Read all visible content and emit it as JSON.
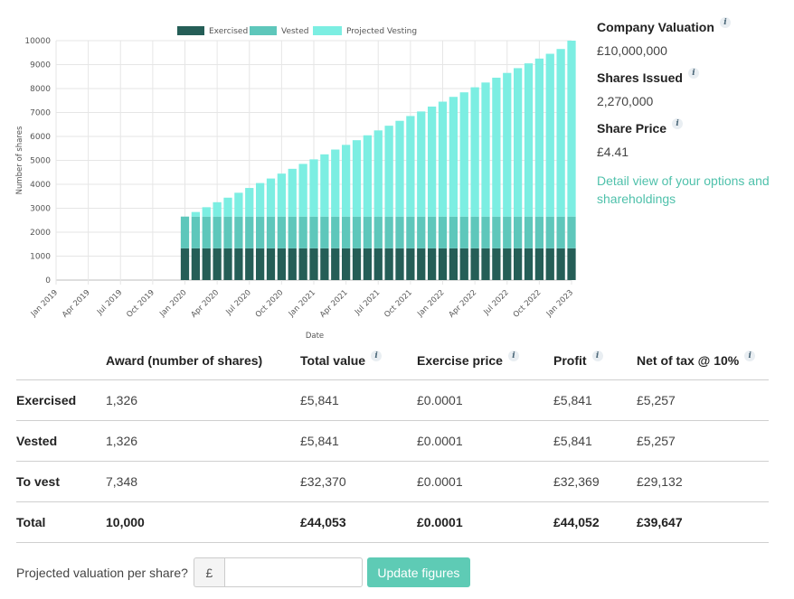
{
  "chart_data": {
    "type": "bar",
    "stacked": true,
    "xlabel": "Date",
    "ylabel": "Number of shares",
    "ylim": [
      0,
      10000
    ],
    "yticks": [
      0,
      1000,
      2000,
      3000,
      4000,
      5000,
      6000,
      7000,
      8000,
      9000,
      10000
    ],
    "grid": true,
    "legend_position": "top",
    "xtick_labels": [
      "Jan 2019",
      "Apr 2019",
      "Jul 2019",
      "Oct 2019",
      "Jan 2020",
      "Apr 2020",
      "Jul 2020",
      "Oct 2020",
      "Jan 2021",
      "Apr 2021",
      "Jul 2021",
      "Oct 2021",
      "Jan 2022",
      "Apr 2022",
      "Jul 2022",
      "Oct 2022",
      "Jan 2023"
    ],
    "x_start": "Jan 2020",
    "x_end": "Jan 2023",
    "series": [
      {
        "name": "Exercised",
        "color": "#255e57",
        "values": [
          1326,
          1326,
          1326,
          1326,
          1326,
          1326,
          1326,
          1326,
          1326,
          1326,
          1326,
          1326,
          1326,
          1326,
          1326,
          1326,
          1326,
          1326,
          1326,
          1326,
          1326,
          1326,
          1326,
          1326,
          1326,
          1326,
          1326,
          1326,
          1326,
          1326,
          1326,
          1326,
          1326,
          1326,
          1326,
          1326,
          1326
        ]
      },
      {
        "name": "Vested",
        "color": "#5ec7bb",
        "values": [
          1326,
          1326,
          1326,
          1326,
          1326,
          1326,
          1326,
          1326,
          1326,
          1326,
          1326,
          1326,
          1326,
          1326,
          1326,
          1326,
          1326,
          1326,
          1326,
          1326,
          1326,
          1326,
          1326,
          1326,
          1326,
          1326,
          1326,
          1326,
          1326,
          1326,
          1326,
          1326,
          1326,
          1326,
          1326,
          1326,
          1326
        ]
      },
      {
        "name": "Projected Vesting",
        "color": "#7ceee2",
        "values": [
          0,
          191,
          391,
          600,
          790,
          995,
          1195,
          1400,
          1590,
          1795,
          1995,
          2200,
          2390,
          2600,
          2800,
          2995,
          3190,
          3395,
          3600,
          3795,
          4000,
          4200,
          4390,
          4595,
          4800,
          5000,
          5190,
          5400,
          5600,
          5800,
          6000,
          6200,
          6400,
          6600,
          6800,
          7000,
          7348
        ]
      }
    ]
  },
  "valuation": {
    "company_label": "Company Valuation",
    "company_value": "£10,000,000",
    "shares_label": "Shares Issued",
    "shares_value": "2,270,000",
    "price_label": "Share Price",
    "price_value": "£4.41",
    "detail_link": "Detail view of your options and shareholdings"
  },
  "table": {
    "headers": [
      "Award (number of shares)",
      "Total value",
      "Exercise price",
      "Profit",
      "Net of tax @ 10%"
    ],
    "rows": [
      {
        "label": "Exercised",
        "cells": [
          "1,326",
          "£5,841",
          "£0.0001",
          "£5,841",
          "£5,257"
        ]
      },
      {
        "label": "Vested",
        "cells": [
          "1,326",
          "£5,841",
          "£0.0001",
          "£5,841",
          "£5,257"
        ]
      },
      {
        "label": "To vest",
        "cells": [
          "7,348",
          "£32,370",
          "£0.0001",
          "£32,369",
          "£29,132"
        ]
      },
      {
        "label": "Total",
        "cells": [
          "10,000",
          "£44,053",
          "£0.0001",
          "£44,052",
          "£39,647"
        ]
      }
    ]
  },
  "projection": {
    "label": "Projected valuation per share?",
    "currency": "£",
    "input_value": "",
    "button_label": "Update figures"
  }
}
